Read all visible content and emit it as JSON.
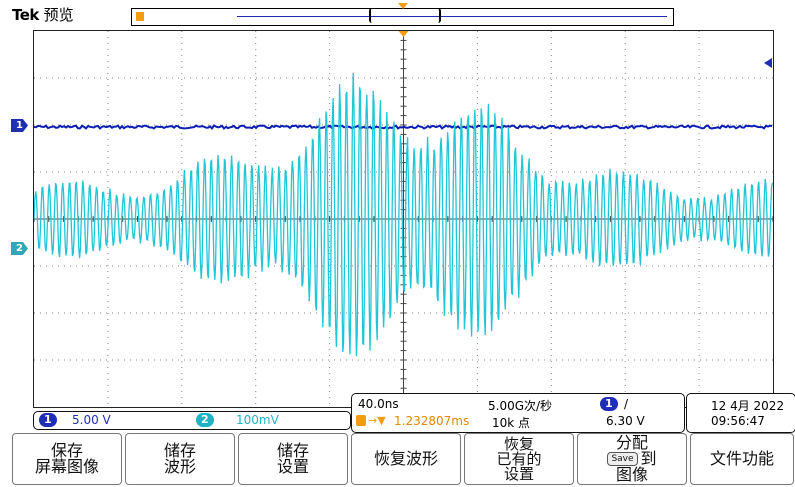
{
  "header": {
    "brand": "Tek",
    "mode": "预览"
  },
  "markers": {
    "trigger_top": "T",
    "channel1": "1",
    "channel2": "2"
  },
  "channels": {
    "ch1": {
      "number": "1",
      "scale": "5.00 V",
      "color": "#0b1fb3"
    },
    "ch2": {
      "number": "2",
      "scale": "100mV",
      "color": "#1fc6d6"
    }
  },
  "timebase": {
    "scale": "40.0ns",
    "sample_rate": "5.00G次/秒",
    "record_length": "10k 点",
    "trigger_position": "1.232807ms",
    "trigger_source": "1",
    "trigger_slope": "/",
    "trigger_level": "6.30 V"
  },
  "clock": {
    "date": "12 4月 2022",
    "time": "09:56:47"
  },
  "menu": {
    "b1": "保存\n屏幕图像",
    "b2": "储存\n波形",
    "b3": "储存\n设置",
    "b4": "恢复波形",
    "b5": "恢复\n已有的\n设置",
    "b6_top": "分配",
    "b6_save": "Save",
    "b6_to": "到",
    "b6_bottom": "图像",
    "b7": "文件功能"
  },
  "colors": {
    "ch1": "#0b1fb3",
    "ch2": "#1fc6d6",
    "trigger": "#f39c12",
    "ch1_marker": "#1f2fb5",
    "ch2_marker": "#2fa7b7"
  }
}
